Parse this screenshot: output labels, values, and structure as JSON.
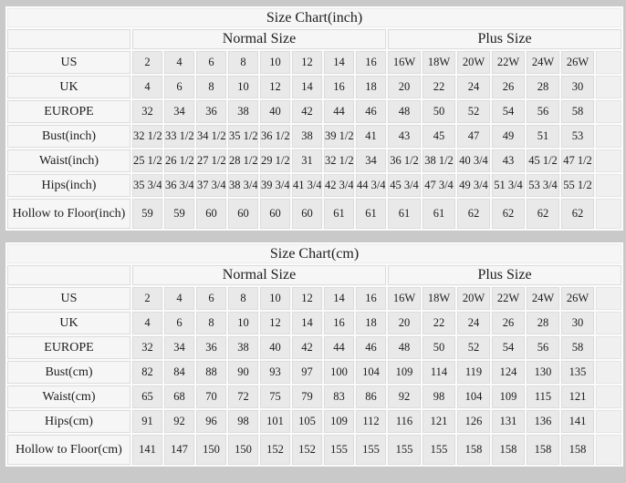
{
  "colors": {
    "frame": "#c9c9c9",
    "grid": "#fbfbfb",
    "data_cell_bg": "#e9e9e9",
    "label_cell_bg": "#f6f6f6",
    "text": "#1d1d1d"
  },
  "chart_data": [
    {
      "type": "table",
      "title": "Size Chart(inch)",
      "column_groups": [
        {
          "label": "Normal Size",
          "span": 8
        },
        {
          "label": "Plus Size",
          "span": 6
        }
      ],
      "rows": [
        {
          "label": "US",
          "values": [
            "2",
            "4",
            "6",
            "8",
            "10",
            "12",
            "14",
            "16",
            "16W",
            "18W",
            "20W",
            "22W",
            "24W",
            "26W"
          ]
        },
        {
          "label": "UK",
          "values": [
            "4",
            "6",
            "8",
            "10",
            "12",
            "14",
            "16",
            "18",
            "20",
            "22",
            "24",
            "26",
            "28",
            "30"
          ]
        },
        {
          "label": "EUROPE",
          "values": [
            "32",
            "34",
            "36",
            "38",
            "40",
            "42",
            "44",
            "46",
            "48",
            "50",
            "52",
            "54",
            "56",
            "58"
          ]
        },
        {
          "label": "Bust(inch)",
          "values": [
            "32 1/2",
            "33 1/2",
            "34 1/2",
            "35 1/2",
            "36 1/2",
            "38",
            "39 1/2",
            "41",
            "43",
            "45",
            "47",
            "49",
            "51",
            "53"
          ]
        },
        {
          "label": "Waist(inch)",
          "values": [
            "25 1/2",
            "26 1/2",
            "27 1/2",
            "28 1/2",
            "29 1/2",
            "31",
            "32 1/2",
            "34",
            "36 1/2",
            "38 1/2",
            "40 3/4",
            "43",
            "45 1/2",
            "47 1/2"
          ]
        },
        {
          "label": "Hips(inch)",
          "values": [
            "35 3/4",
            "36 3/4",
            "37 3/4",
            "38 3/4",
            "39 3/4",
            "41 3/4",
            "42 3/4",
            "44 3/4",
            "45 3/4",
            "47 3/4",
            "49 3/4",
            "51 3/4",
            "53 3/4",
            "55 1/2"
          ]
        },
        {
          "label": "Hollow to Floor(inch)",
          "values": [
            "59",
            "59",
            "60",
            "60",
            "60",
            "60",
            "61",
            "61",
            "61",
            "61",
            "62",
            "62",
            "62",
            "62"
          ]
        }
      ]
    },
    {
      "type": "table",
      "title": "Size Chart(cm)",
      "column_groups": [
        {
          "label": "Normal Size",
          "span": 8
        },
        {
          "label": "Plus Size",
          "span": 6
        }
      ],
      "rows": [
        {
          "label": "US",
          "values": [
            "2",
            "4",
            "6",
            "8",
            "10",
            "12",
            "14",
            "16",
            "16W",
            "18W",
            "20W",
            "22W",
            "24W",
            "26W"
          ]
        },
        {
          "label": "UK",
          "values": [
            "4",
            "6",
            "8",
            "10",
            "12",
            "14",
            "16",
            "18",
            "20",
            "22",
            "24",
            "26",
            "28",
            "30"
          ]
        },
        {
          "label": "EUROPE",
          "values": [
            "32",
            "34",
            "36",
            "38",
            "40",
            "42",
            "44",
            "46",
            "48",
            "50",
            "52",
            "54",
            "56",
            "58"
          ]
        },
        {
          "label": "Bust(cm)",
          "values": [
            "82",
            "84",
            "88",
            "90",
            "93",
            "97",
            "100",
            "104",
            "109",
            "114",
            "119",
            "124",
            "130",
            "135"
          ]
        },
        {
          "label": "Waist(cm)",
          "values": [
            "65",
            "68",
            "70",
            "72",
            "75",
            "79",
            "83",
            "86",
            "92",
            "98",
            "104",
            "109",
            "115",
            "121"
          ]
        },
        {
          "label": "Hips(cm)",
          "values": [
            "91",
            "92",
            "96",
            "98",
            "101",
            "105",
            "109",
            "112",
            "116",
            "121",
            "126",
            "131",
            "136",
            "141"
          ]
        },
        {
          "label": "Hollow to Floor(cm)",
          "values": [
            "141",
            "147",
            "150",
            "150",
            "152",
            "152",
            "155",
            "155",
            "155",
            "155",
            "158",
            "158",
            "158",
            "158"
          ]
        }
      ]
    }
  ]
}
